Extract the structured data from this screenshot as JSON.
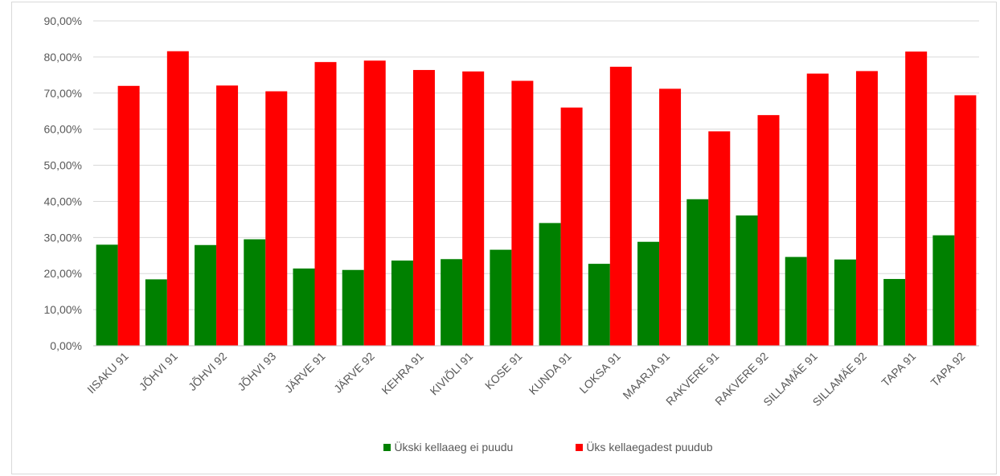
{
  "colors": {
    "series1": "#008000",
    "series2": "#ff0000",
    "grid": "#d9d9d9",
    "axis": "#bfbfbf",
    "text": "#595959"
  },
  "chart_data": {
    "type": "bar",
    "title": "",
    "xlabel": "",
    "ylabel": "",
    "ylim": [
      0,
      90
    ],
    "yticks": [
      "0,00%",
      "10,00%",
      "20,00%",
      "30,00%",
      "40,00%",
      "50,00%",
      "60,00%",
      "70,00%",
      "80,00%",
      "90,00%"
    ],
    "grid": true,
    "legend_position": "bottom",
    "categories": [
      "IISAKU 91",
      "JÕHVI 91",
      "JÕHVI 92",
      "JÕHVI 93",
      "JÄRVE 91",
      "JÄRVE 92",
      "KEHRA 91",
      "KIVIÕLI 91",
      "KOSE 91",
      "KUNDA 91",
      "LOKSA 91",
      "MAARJA 91",
      "RAKVERE 91",
      "RAKVERE 92",
      "SILLAMÄE 91",
      "SILLAMÄE 92",
      "TAPA 91",
      "TAPA 92"
    ],
    "series": [
      {
        "name": "Ükski kellaaeg ei puudu",
        "color": "#008000",
        "values": [
          28.0,
          18.4,
          27.9,
          29.5,
          21.4,
          21.0,
          23.6,
          24.0,
          26.6,
          34.0,
          22.7,
          28.8,
          40.6,
          36.1,
          24.6,
          23.9,
          18.5,
          30.6
        ]
      },
      {
        "name": "Üks kellaegadest puudub",
        "color": "#ff0000",
        "values": [
          72.0,
          81.6,
          72.1,
          70.5,
          78.6,
          79.0,
          76.4,
          76.0,
          73.4,
          66.0,
          77.3,
          71.2,
          59.4,
          63.9,
          75.4,
          76.1,
          81.5,
          69.4
        ]
      }
    ]
  }
}
